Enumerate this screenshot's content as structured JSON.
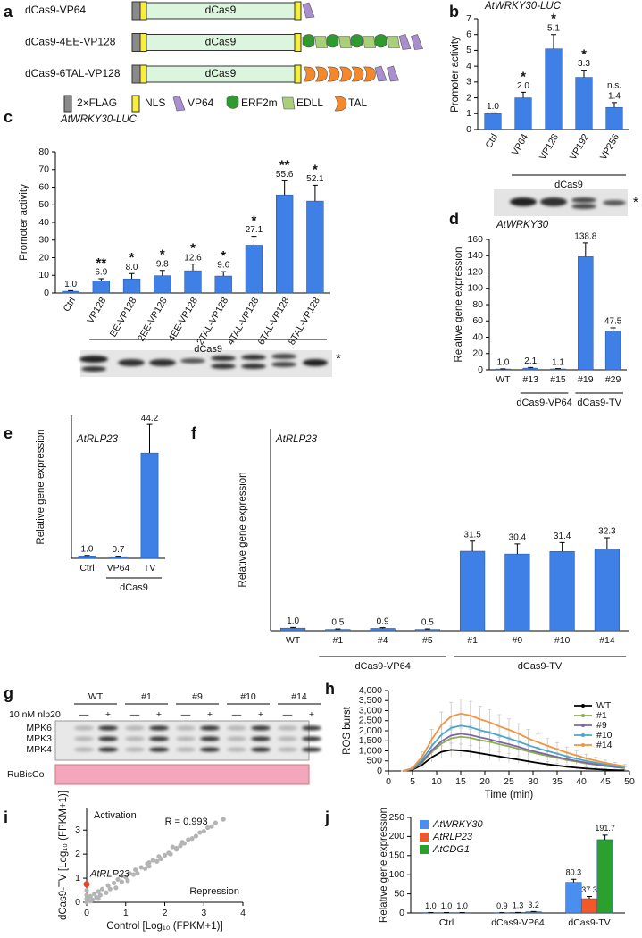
{
  "panel_labels": [
    "a",
    "b",
    "c",
    "d",
    "e",
    "f",
    "g",
    "h",
    "i",
    "j"
  ],
  "diagram": {
    "constructs": [
      {
        "name": "dCas9-VP64",
        "domains": [
          "VP64"
        ]
      },
      {
        "name": "dCas9-4EE-VP128",
        "domains": [
          "ERF2m",
          "EDLL",
          "ERF2m",
          "EDLL",
          "ERF2m",
          "EDLL",
          "ERF2m",
          "EDLL",
          "VP64",
          "VP64"
        ]
      },
      {
        "name": "dCas9-6TAL-VP128",
        "domains": [
          "TAL",
          "TAL",
          "TAL",
          "TAL",
          "TAL",
          "TAL",
          "VP64",
          "VP64"
        ]
      }
    ],
    "core_label": "dCas9",
    "legend": [
      {
        "label": "2×FLAG",
        "color": "#8a8a8a"
      },
      {
        "label": "NLS",
        "color": "#f7ef3a"
      },
      {
        "label": "VP64",
        "color": "#a98fd0"
      },
      {
        "label": "ERF2m",
        "color": "#2f9a2f"
      },
      {
        "label": "EDLL",
        "color": "#a9cf78"
      },
      {
        "label": "TAL",
        "color": "#f5892a"
      }
    ]
  },
  "blot_marker": "*",
  "blot_g": {
    "treatment": "10 nM nlp20",
    "lanes": [
      "WT",
      "#1",
      "#9",
      "#10",
      "#14"
    ],
    "signs": [
      "—",
      "+"
    ],
    "bands": [
      "MPK6",
      "MPK3",
      "MPK4"
    ],
    "loading": "RuBisCo"
  },
  "chart_data": [
    {
      "type": "bar",
      "title": "AtWRKY30-LUC",
      "ylabel": "Promoter activity",
      "color": "#3f80e6",
      "categories": [
        "Ctrl",
        "VP64",
        "VP128",
        "VP192",
        "VP256"
      ],
      "values": [
        1.0,
        2.0,
        5.1,
        3.3,
        1.4
      ],
      "value_labels": [
        "1.0",
        "2.0",
        "5.1",
        "3.3",
        "1.4"
      ],
      "errors": [
        0.05,
        0.35,
        0.9,
        0.45,
        0.3
      ],
      "significance": [
        null,
        "*",
        "*",
        "*",
        "n.s."
      ],
      "groups": [
        null,
        "dCas9",
        "dCas9",
        "dCas9",
        "dCas9"
      ],
      "ylim": [
        0,
        7
      ],
      "yticks": [
        0,
        1,
        2,
        3,
        4,
        5,
        6,
        7
      ]
    },
    {
      "type": "bar",
      "title": "AtWRKY30-LUC",
      "ylabel": "Promoter activity",
      "color": "#3f80e6",
      "categories": [
        "Ctrl",
        "VP128",
        "EE-VP128",
        "2EE-VP128",
        "4EE-VP128",
        "2TAL-VP128",
        "4TAL-VP128",
        "6TAL-VP128",
        "8TAL-VP128"
      ],
      "values": [
        1.0,
        6.9,
        8.0,
        9.8,
        12.6,
        9.6,
        27.1,
        55.6,
        52.1
      ],
      "value_labels": [
        "1.0",
        "6.9",
        "8.0",
        "9.8",
        "12.6",
        "9.6",
        "27.1",
        "55.6",
        "52.1"
      ],
      "errors": [
        0.3,
        1.2,
        3,
        3,
        3.8,
        2.5,
        5,
        8,
        9
      ],
      "significance": [
        null,
        "**",
        "*",
        "*",
        "*",
        "*",
        "*",
        "**",
        "*"
      ],
      "groups": [
        null,
        "dCas9",
        "dCas9",
        "dCas9",
        "dCas9",
        "dCas9",
        "dCas9",
        "dCas9",
        "dCas9"
      ],
      "ylim": [
        0,
        80
      ],
      "yticks": [
        0,
        10,
        20,
        30,
        40,
        50,
        60,
        70,
        80
      ]
    },
    {
      "type": "bar",
      "title": "AtWRKY30",
      "ylabel": "Relative gene expression",
      "color": "#3f80e6",
      "categories": [
        "WT",
        "#13",
        "#15",
        "#19",
        "#29"
      ],
      "values": [
        1.0,
        2.1,
        1.1,
        138.8,
        47.5
      ],
      "value_labels": [
        "1.0",
        "2.1",
        "1.1",
        "138.8",
        "47.5"
      ],
      "errors": [
        0.3,
        0.8,
        0.4,
        17,
        4
      ],
      "groups": [
        null,
        "dCas9-VP64",
        "dCas9-VP64",
        "dCas9-TV",
        "dCas9-TV"
      ],
      "ylim": [
        0,
        160
      ],
      "yticks": [
        0,
        20,
        40,
        60,
        80,
        100,
        120,
        140,
        160
      ]
    },
    {
      "type": "bar",
      "title": "AtRLP23",
      "ylabel": "Relative gene expression",
      "color": "#3f80e6",
      "categories": [
        "Ctrl",
        "VP64",
        "TV"
      ],
      "values": [
        1.0,
        0.7,
        44.2
      ],
      "value_labels": [
        "1.0",
        "0.7",
        "44.2"
      ],
      "errors": [
        0.2,
        0.2,
        12
      ],
      "groups": [
        null,
        "dCas9",
        "dCas9"
      ],
      "ylim": [
        0,
        60
      ]
    },
    {
      "type": "bar",
      "title": "AtRLP23",
      "ylabel": "Relative gene expression",
      "color": "#3f80e6",
      "categories": [
        "WT",
        "#1",
        "#4",
        "#5",
        "#1",
        "#9",
        "#10",
        "#14"
      ],
      "values": [
        1.0,
        0.5,
        0.9,
        0.5,
        31.5,
        30.4,
        31.4,
        32.3
      ],
      "value_labels": [
        "1.0",
        "0.5",
        "0.9",
        "0.5",
        "31.5",
        "30.4",
        "31.4",
        "32.3"
      ],
      "errors": [
        0.3,
        0.2,
        0.3,
        0.2,
        4,
        4,
        3.5,
        4.5
      ],
      "groups": [
        null,
        "dCas9-VP64",
        "dCas9-VP64",
        "dCas9-VP64",
        "dCas9-TV",
        "dCas9-TV",
        "dCas9-TV",
        "dCas9-TV"
      ],
      "ylim": [
        0,
        80
      ]
    },
    {
      "type": "line",
      "xlabel": "Time (min)",
      "ylabel": "ROS burst",
      "legend": "top-right",
      "x": [
        3,
        5,
        7,
        9,
        11,
        13,
        15,
        17,
        19,
        21,
        23,
        25,
        27,
        29,
        31,
        33,
        35,
        37,
        39,
        41,
        43,
        45,
        47,
        49
      ],
      "xlim": [
        0,
        50
      ],
      "xticks": [
        0,
        5,
        10,
        15,
        20,
        25,
        30,
        35,
        40,
        45,
        50
      ],
      "ylim": [
        0,
        4000
      ],
      "yticks": [
        0,
        500,
        {
          "value": 1000,
          "label": "1,000"
        },
        {
          "value": 1500,
          "label": "1,500"
        },
        {
          "value": 2000,
          "label": "2,000"
        },
        {
          "value": 2500,
          "label": "2,500"
        },
        {
          "value": 3000,
          "label": "3,000"
        },
        {
          "value": 3500,
          "label": "3,500"
        },
        {
          "value": 4000,
          "label": "4,000"
        }
      ],
      "series": [
        {
          "name": "WT",
          "color": "#000000",
          "values": [
            0,
            60,
            300,
            680,
            950,
            1050,
            1020,
            960,
            880,
            800,
            720,
            640,
            560,
            480,
            400,
            330,
            270,
            210,
            160,
            120,
            90,
            60,
            40,
            30
          ],
          "errors": [
            0,
            30,
            120,
            230,
            300,
            330,
            320,
            300,
            280,
            260,
            240,
            220,
            200,
            180,
            160,
            140,
            120,
            100,
            80,
            70,
            60,
            50,
            40,
            30
          ]
        },
        {
          "name": "#1",
          "color": "#8db04a",
          "values": [
            0,
            80,
            420,
            940,
            1360,
            1620,
            1700,
            1650,
            1530,
            1450,
            1330,
            1220,
            1100,
            970,
            850,
            750,
            650,
            540,
            460,
            370,
            310,
            240,
            190,
            140
          ],
          "errors": [
            0,
            40,
            160,
            310,
            400,
            430,
            440,
            430,
            400,
            380,
            350,
            330,
            300,
            270,
            240,
            210,
            190,
            160,
            140,
            120,
            100,
            80,
            60,
            50
          ]
        },
        {
          "name": "#9",
          "color": "#7f64a8",
          "values": [
            0,
            90,
            460,
            1020,
            1480,
            1760,
            1850,
            1790,
            1670,
            1570,
            1440,
            1330,
            1200,
            1050,
            930,
            810,
            700,
            590,
            500,
            410,
            330,
            260,
            200,
            150
          ],
          "errors": [
            0,
            40,
            170,
            330,
            430,
            460,
            470,
            460,
            430,
            410,
            380,
            350,
            320,
            290,
            260,
            230,
            200,
            180,
            150,
            130,
            110,
            90,
            70,
            60
          ]
        },
        {
          "name": "#10",
          "color": "#4aa7c9",
          "values": [
            0,
            110,
            560,
            1240,
            1800,
            2140,
            2250,
            2180,
            2030,
            1910,
            1760,
            1620,
            1460,
            1280,
            1130,
            990,
            860,
            720,
            610,
            500,
            410,
            320,
            250,
            180
          ],
          "errors": [
            0,
            50,
            200,
            400,
            520,
            560,
            580,
            560,
            520,
            500,
            460,
            430,
            400,
            360,
            320,
            290,
            260,
            220,
            190,
            160,
            140,
            110,
            90,
            70
          ]
        },
        {
          "name": "#14",
          "color": "#f7923a",
          "values": [
            0,
            140,
            710,
            1570,
            2280,
            2710,
            2850,
            2760,
            2570,
            2420,
            2220,
            2050,
            1850,
            1620,
            1430,
            1250,
            1080,
            910,
            770,
            630,
            510,
            400,
            310,
            230
          ],
          "errors": [
            0,
            60,
            250,
            500,
            650,
            700,
            720,
            700,
            650,
            620,
            580,
            540,
            500,
            450,
            400,
            360,
            320,
            280,
            240,
            200,
            170,
            140,
            110,
            90
          ]
        }
      ]
    },
    {
      "type": "scatter",
      "xlabel": "Control [Log₁₀ (FPKM+1)]",
      "ylabel": "dCas9-TV [Log₁₀ (FPKM+1)]",
      "color": "#b4b4b4",
      "xlim": [
        0,
        4
      ],
      "xticks": [
        0,
        1,
        2,
        3,
        4
      ],
      "ylim": [
        0,
        3.9
      ],
      "yticks": [
        0,
        1,
        2,
        3
      ],
      "x": [
        0,
        0,
        0,
        0.05,
        0.1,
        0.15,
        0.2,
        0.25,
        0.3,
        0.35,
        0.4,
        0.5,
        0.55,
        0.6,
        0.7,
        0.75,
        0.8,
        0.9,
        1.0,
        1.05,
        1.1,
        1.2,
        1.25,
        1.3,
        1.4,
        1.5,
        1.55,
        1.6,
        1.7,
        1.8,
        1.85,
        1.9,
        2.0,
        2.1,
        2.15,
        2.2,
        2.3,
        2.4,
        2.45,
        2.5,
        2.6,
        2.7,
        2.8,
        2.9,
        3.0,
        3.1,
        3.2,
        3.3,
        3.5,
        0.3,
        0.9,
        1.6,
        2.3,
        0.0,
        0.1
      ],
      "y": [
        0,
        0.3,
        0.5,
        0.1,
        0.25,
        0.1,
        0.35,
        0.2,
        0.45,
        0.3,
        0.55,
        0.4,
        0.7,
        0.55,
        0.8,
        0.6,
        0.95,
        0.85,
        1.05,
        0.9,
        1.2,
        1.15,
        1.35,
        1.2,
        1.45,
        1.4,
        1.6,
        1.5,
        1.75,
        1.7,
        1.9,
        1.8,
        1.95,
        2.05,
        2.0,
        2.3,
        2.25,
        2.35,
        2.5,
        2.45,
        2.6,
        2.65,
        2.75,
        2.9,
        2.95,
        3.1,
        3.15,
        3.3,
        3.45,
        0.15,
        1.1,
        1.65,
        2.2,
        0.15,
        0.05
      ],
      "highlight": {
        "label": "AtRLP23",
        "x": 0,
        "y": 0.75,
        "color": "#e0492f"
      },
      "annotations": [
        "Activation",
        "Repression",
        "R = 0.993"
      ]
    },
    {
      "type": "bar",
      "ylabel": "Relative gene expression",
      "legend": "top-left",
      "categories": [
        "Ctrl",
        "dCas9-VP64",
        "dCas9-TV"
      ],
      "ylim": [
        0,
        250
      ],
      "yticks": [
        0,
        50,
        100,
        150,
        200,
        250
      ],
      "series": [
        {
          "name": "AtWRKY30",
          "color": "#4a8ef0",
          "values": [
            1.0,
            0.9,
            80.3
          ],
          "value_labels": [
            "1.0",
            "0.9",
            "80.3"
          ],
          "errors": [
            0.1,
            0.1,
            8
          ]
        },
        {
          "name": "AtRLP23",
          "color": "#f05a28",
          "values": [
            1.0,
            1.3,
            37.3
          ],
          "value_labels": [
            "1.0",
            "1.3",
            "37.3"
          ],
          "errors": [
            0.1,
            0.2,
            6
          ]
        },
        {
          "name": "AtCDG1",
          "color": "#2ca02c",
          "values": [
            1.0,
            3.2,
            191.7
          ],
          "value_labels": [
            "1.0",
            "3.2",
            "191.7"
          ],
          "errors": [
            0.1,
            0.5,
            12
          ]
        }
      ]
    }
  ]
}
